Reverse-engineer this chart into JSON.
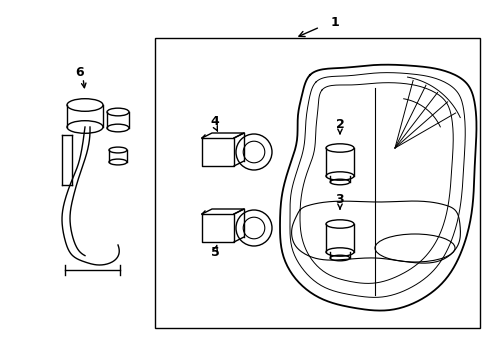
{
  "background_color": "#ffffff",
  "line_color": "#000000",
  "line_width": 1.0,
  "label_fontsize": 8,
  "figsize": [
    4.89,
    3.6
  ],
  "dpi": 100
}
